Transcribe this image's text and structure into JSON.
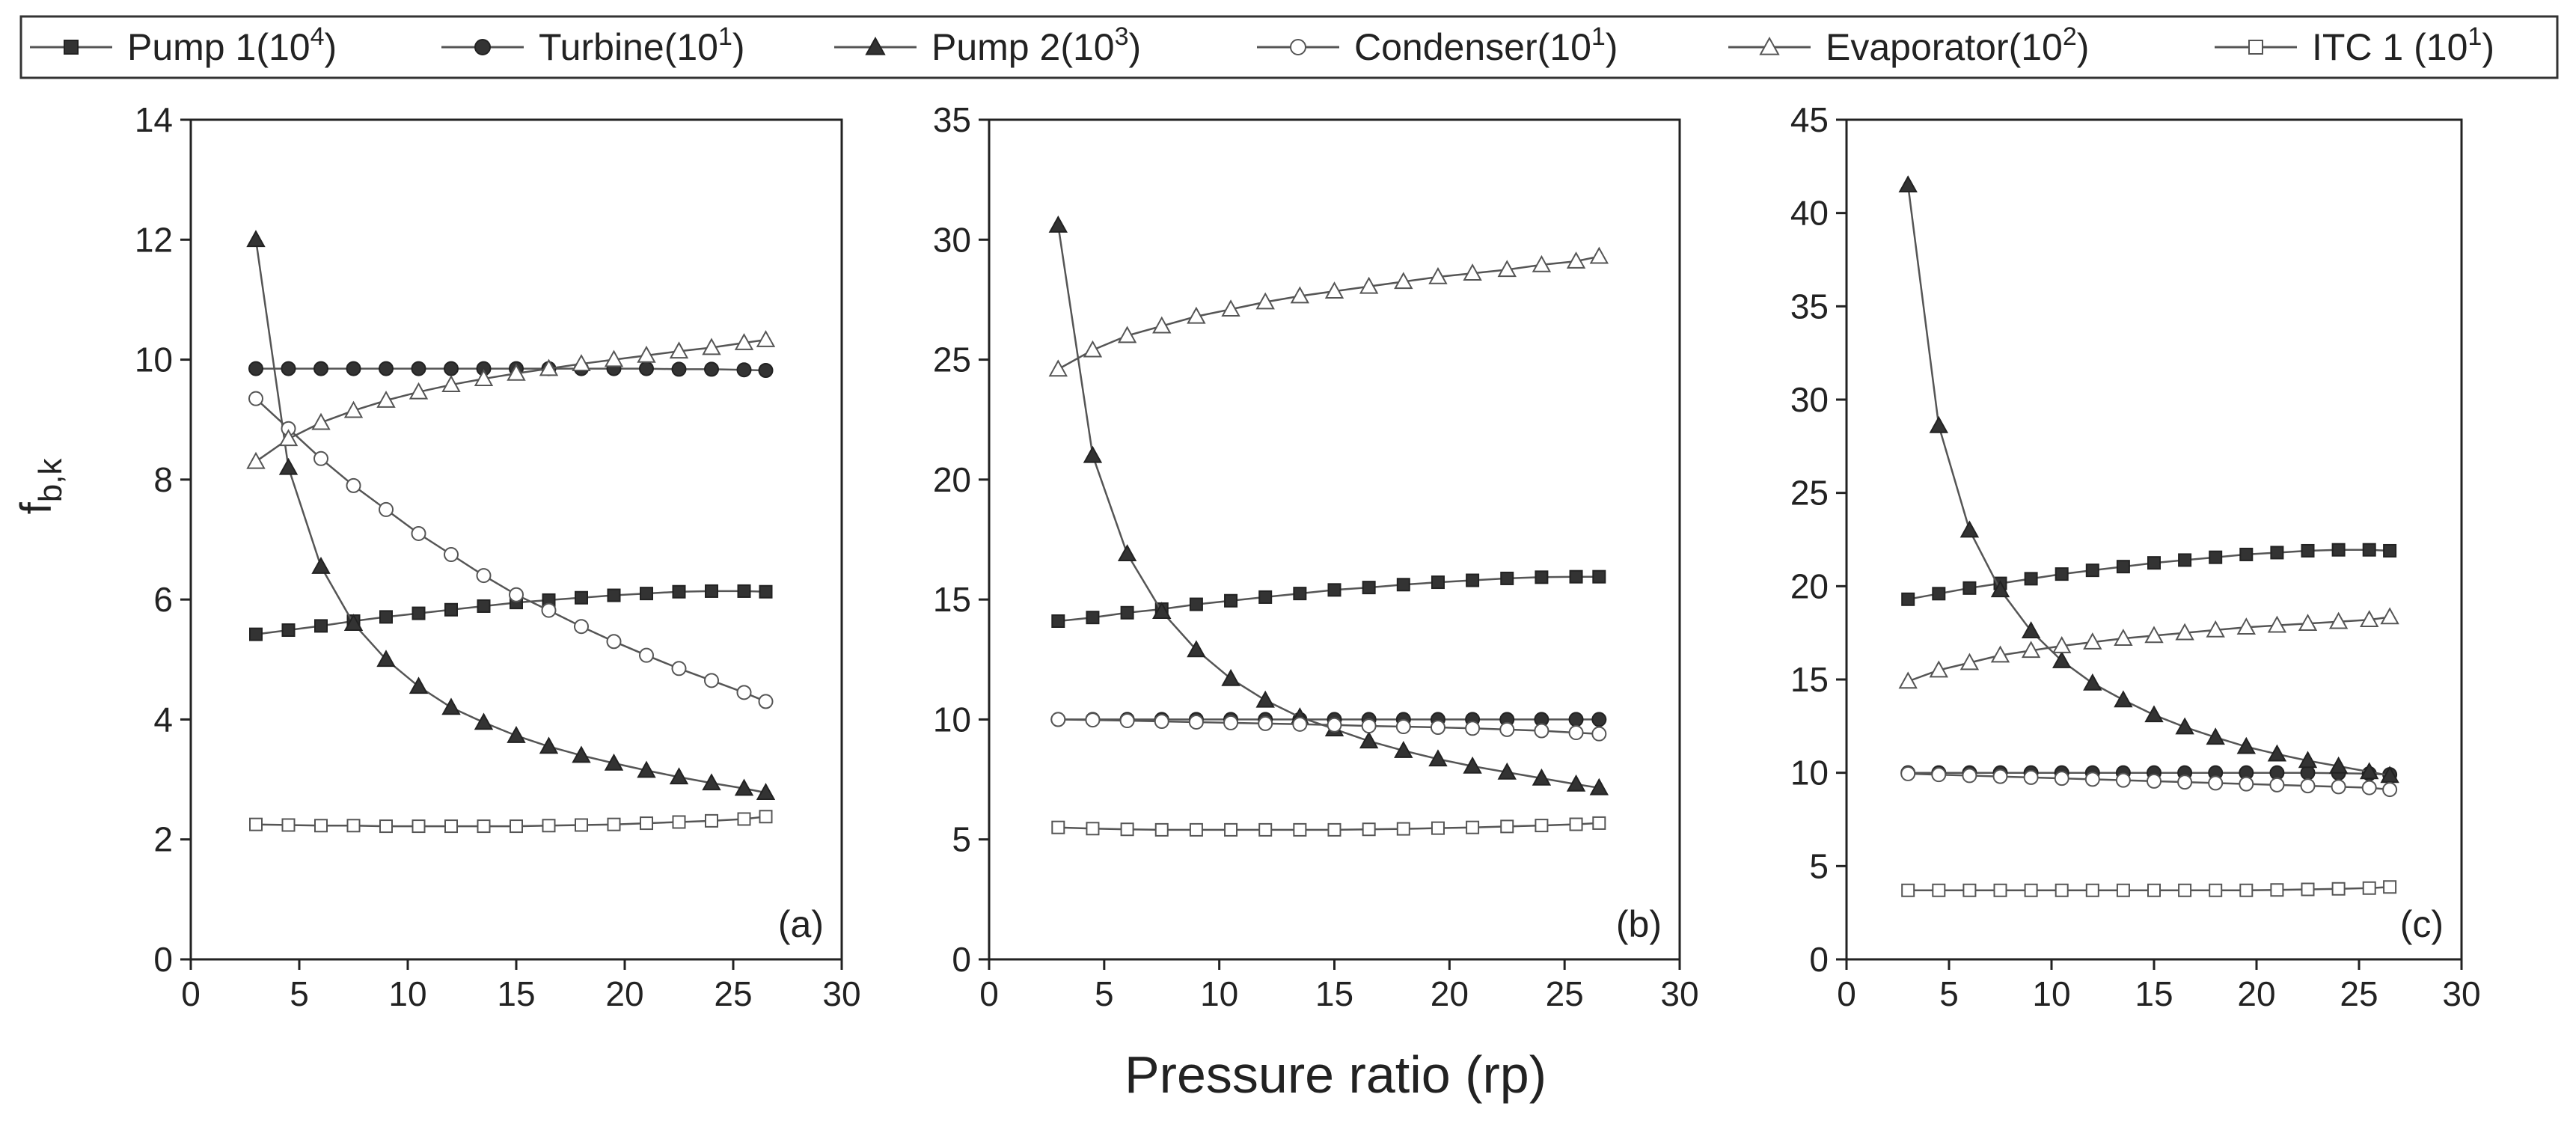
{
  "chart_data": {
    "type": "line",
    "xlabel": "Pressure ratio (rp)",
    "ylabel": {
      "main": "f",
      "sub": "b,k"
    },
    "legend": {
      "placement": "top",
      "entries": [
        {
          "name": "Pump 1",
          "scale": "(10",
          "exp": "4",
          "close": ")",
          "marker": "square-filled"
        },
        {
          "name": "Turbine",
          "scale": "(10",
          "exp": "1",
          "close": ")",
          "marker": "circle-filled"
        },
        {
          "name": "Pump 2",
          "scale": "(10",
          "exp": "3",
          "close": ")",
          "marker": "triangle-filled"
        },
        {
          "name": "Condenser",
          "scale": "(10",
          "exp": "1",
          "close": ")",
          "marker": "circle-open"
        },
        {
          "name": "Evaporator",
          "scale": "(10",
          "exp": "2",
          "close": ")",
          "marker": "triangle-open"
        },
        {
          "name": "ITC 1",
          "scale": " (10",
          "exp": "1",
          "close": ")",
          "marker": "square-open"
        }
      ]
    },
    "x": [
      3,
      4.5,
      6,
      7.5,
      9,
      10.5,
      12,
      13.5,
      15,
      16.5,
      18,
      19.5,
      21,
      22.5,
      24,
      25.5,
      26.5
    ],
    "xlim": [
      0,
      30
    ],
    "xticks": [
      0,
      5,
      10,
      15,
      20,
      25,
      30
    ],
    "panels": [
      {
        "label": "(a)",
        "ylim": [
          0,
          14
        ],
        "yticks": [
          0,
          2,
          4,
          6,
          8,
          10,
          12,
          14
        ],
        "series": [
          {
            "name": "Pump 1",
            "values": [
              5.42,
              5.49,
              5.56,
              5.64,
              5.71,
              5.77,
              5.83,
              5.89,
              5.95,
              5.99,
              6.03,
              6.07,
              6.1,
              6.13,
              6.14,
              6.14,
              6.13
            ]
          },
          {
            "name": "Turbine",
            "values": [
              9.85,
              9.85,
              9.85,
              9.85,
              9.85,
              9.85,
              9.85,
              9.85,
              9.85,
              9.85,
              9.85,
              9.85,
              9.85,
              9.84,
              9.84,
              9.83,
              9.82
            ]
          },
          {
            "name": "Pump 2",
            "values": [
              12.0,
              8.2,
              6.55,
              5.6,
              5.0,
              4.55,
              4.2,
              3.95,
              3.73,
              3.55,
              3.4,
              3.27,
              3.15,
              3.04,
              2.94,
              2.85,
              2.78
            ]
          },
          {
            "name": "Condenser",
            "values": [
              9.35,
              8.85,
              8.35,
              7.9,
              7.5,
              7.1,
              6.75,
              6.4,
              6.08,
              5.82,
              5.55,
              5.3,
              5.07,
              4.85,
              4.65,
              4.45,
              4.3
            ]
          },
          {
            "name": "Evaporator",
            "values": [
              8.3,
              8.68,
              8.95,
              9.15,
              9.32,
              9.46,
              9.58,
              9.68,
              9.77,
              9.85,
              9.93,
              10.0,
              10.07,
              10.14,
              10.2,
              10.28,
              10.33
            ]
          },
          {
            "name": "ITC 1",
            "values": [
              2.25,
              2.24,
              2.23,
              2.23,
              2.22,
              2.22,
              2.22,
              2.22,
              2.22,
              2.23,
              2.24,
              2.25,
              2.27,
              2.29,
              2.31,
              2.34,
              2.38
            ]
          }
        ]
      },
      {
        "label": "(b)",
        "ylim": [
          0,
          35
        ],
        "yticks": [
          0,
          5,
          10,
          15,
          20,
          25,
          30,
          35
        ],
        "series": [
          {
            "name": "Pump 1",
            "values": [
              14.1,
              14.25,
              14.45,
              14.6,
              14.8,
              14.95,
              15.1,
              15.25,
              15.4,
              15.5,
              15.62,
              15.72,
              15.8,
              15.88,
              15.93,
              15.95,
              15.95
            ]
          },
          {
            "name": "Turbine",
            "values": [
              10.0,
              10.0,
              10.0,
              10.0,
              10.0,
              10.0,
              10.0,
              10.0,
              10.0,
              10.0,
              10.0,
              10.0,
              10.0,
              10.0,
              10.0,
              10.0,
              10.0
            ]
          },
          {
            "name": "Pump 2",
            "values": [
              30.6,
              21.0,
              16.9,
              14.5,
              12.9,
              11.7,
              10.8,
              10.1,
              9.6,
              9.1,
              8.7,
              8.35,
              8.05,
              7.8,
              7.55,
              7.3,
              7.15
            ]
          },
          {
            "name": "Condenser",
            "values": [
              10.0,
              9.98,
              9.95,
              9.92,
              9.89,
              9.86,
              9.83,
              9.8,
              9.77,
              9.73,
              9.7,
              9.67,
              9.63,
              9.58,
              9.53,
              9.45,
              9.4
            ]
          },
          {
            "name": "Evaporator",
            "values": [
              24.6,
              25.4,
              26.0,
              26.4,
              26.8,
              27.1,
              27.4,
              27.65,
              27.85,
              28.05,
              28.25,
              28.45,
              28.6,
              28.75,
              28.95,
              29.1,
              29.3
            ]
          },
          {
            "name": "ITC 1",
            "values": [
              5.5,
              5.45,
              5.42,
              5.4,
              5.4,
              5.4,
              5.4,
              5.4,
              5.4,
              5.42,
              5.44,
              5.47,
              5.5,
              5.54,
              5.58,
              5.63,
              5.68
            ]
          }
        ]
      },
      {
        "label": "(c)",
        "ylim": [
          0,
          45
        ],
        "yticks": [
          0,
          5,
          10,
          15,
          20,
          25,
          30,
          35,
          40,
          45
        ],
        "series": [
          {
            "name": "Pump 1",
            "values": [
              19.3,
              19.6,
              19.9,
              20.15,
              20.4,
              20.65,
              20.85,
              21.05,
              21.25,
              21.4,
              21.55,
              21.7,
              21.8,
              21.9,
              21.95,
              21.95,
              21.9
            ]
          },
          {
            "name": "Turbine",
            "values": [
              10.0,
              10.0,
              10.0,
              10.0,
              10.0,
              10.0,
              10.0,
              10.0,
              10.0,
              10.0,
              10.0,
              10.0,
              10.0,
              10.0,
              9.98,
              9.95,
              9.9
            ]
          },
          {
            "name": "Pump 2",
            "values": [
              41.5,
              28.6,
              23.0,
              19.8,
              17.6,
              16.0,
              14.8,
              13.9,
              13.1,
              12.45,
              11.9,
              11.4,
              11.0,
              10.65,
              10.35,
              10.05,
              9.85
            ]
          },
          {
            "name": "Condenser",
            "values": [
              9.95,
              9.9,
              9.85,
              9.8,
              9.75,
              9.7,
              9.65,
              9.6,
              9.55,
              9.5,
              9.45,
              9.4,
              9.35,
              9.3,
              9.25,
              9.2,
              9.1
            ]
          },
          {
            "name": "Evaporator",
            "values": [
              14.9,
              15.5,
              15.9,
              16.3,
              16.55,
              16.8,
              17.0,
              17.2,
              17.35,
              17.5,
              17.65,
              17.8,
              17.9,
              18.0,
              18.1,
              18.2,
              18.35
            ]
          },
          {
            "name": "ITC 1",
            "values": [
              3.7,
              3.7,
              3.7,
              3.7,
              3.7,
              3.7,
              3.7,
              3.7,
              3.7,
              3.7,
              3.7,
              3.7,
              3.72,
              3.75,
              3.78,
              3.82,
              3.88
            ]
          }
        ]
      }
    ]
  }
}
